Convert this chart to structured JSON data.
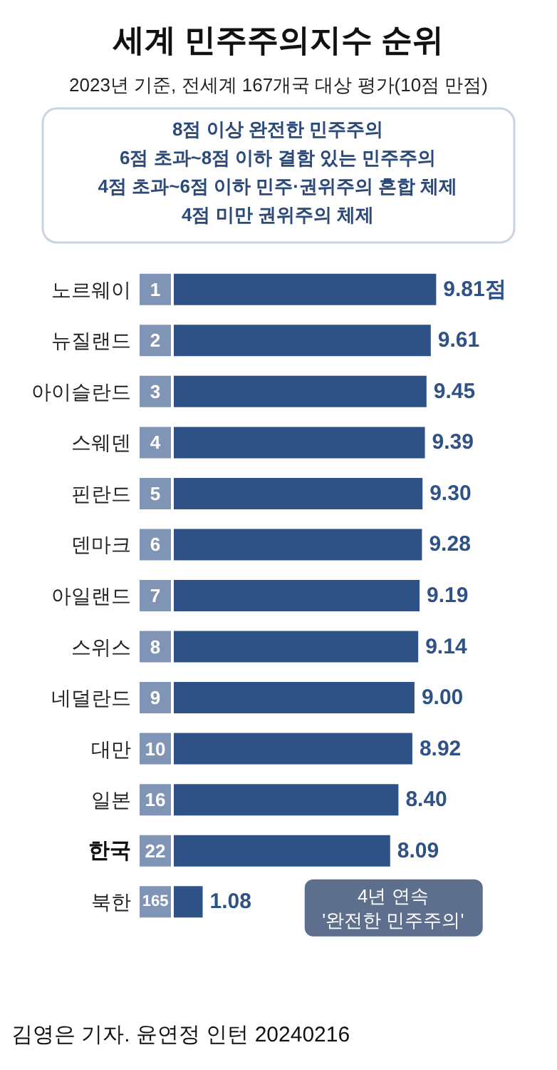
{
  "chart_data": {
    "type": "bar",
    "orientation": "horizontal",
    "title": "세계 민주주의지수 순위",
    "subtitle": "2023년 기준, 전세계 167개국 대상 평가(10점 만점)",
    "categories": [
      "노르웨이",
      "뉴질랜드",
      "아이슬란드",
      "스웨덴",
      "핀란드",
      "덴마크",
      "아일랜드",
      "스위스",
      "네덜란드",
      "대만",
      "일본",
      "한국",
      "북한"
    ],
    "values": [
      9.81,
      9.61,
      9.45,
      9.39,
      9.3,
      9.28,
      9.19,
      9.14,
      9.0,
      8.92,
      8.4,
      8.09,
      1.08
    ],
    "value_labels": [
      "9.81점",
      "9.61",
      "9.45",
      "9.39",
      "9.30",
      "9.28",
      "9.19",
      "9.14",
      "9.00",
      "8.92",
      "8.40",
      "8.09",
      "1.08"
    ],
    "color": "#2f5286",
    "annotations": [
      "8점 이상 완전한 민주주의",
      "6점 초과~8점 이하 결함 있는 민주주의",
      "4점 초과~6점 이하 민주·권위주의 혼합 체제",
      "4점 미만 권위주의 체제",
      {
        "text": "1",
        "y": "노르웨이"
      },
      {
        "text": "2",
        "y": "뉴질랜드"
      },
      {
        "text": "3",
        "y": "아이슬란드"
      },
      {
        "text": "4",
        "y": "스웨덴"
      },
      {
        "text": "5",
        "y": "핀란드"
      },
      {
        "text": "6",
        "y": "덴마크"
      },
      {
        "text": "7",
        "y": "아일랜드"
      },
      {
        "text": "8",
        "y": "스위스"
      },
      {
        "text": "9",
        "y": "네덜란드"
      },
      {
        "text": "10",
        "y": "대만"
      },
      {
        "text": "16",
        "y": "일본"
      },
      {
        "text": "22",
        "y": "한국"
      },
      {
        "text": "165",
        "y": "북한"
      },
      {
        "text": "4년 연속\n'완전한 민주주의'",
        "x": 8.09,
        "y": "한국"
      },
      "김영은 기자. 윤연정 인턴 20240216"
    ]
  }
}
